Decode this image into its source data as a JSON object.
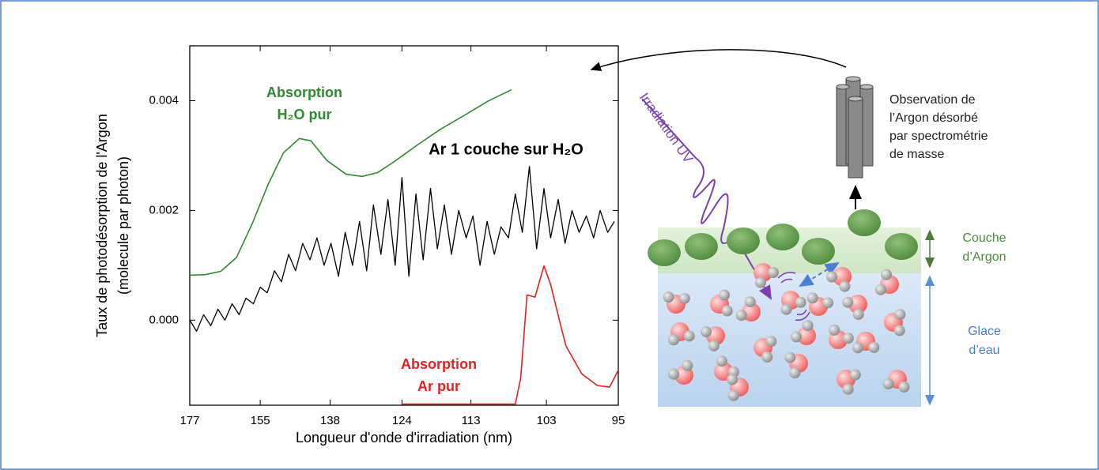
{
  "chart_data": {
    "type": "line",
    "ylabel": [
      "Taux de photodésorption de l'Argon",
      "(molecule par photon)"
    ],
    "xlabel": "Longueur d'onde d'irradiation (nm)",
    "xscale": "reciprocal",
    "xlim": [
      177,
      95
    ],
    "xticks": [
      177,
      155,
      138,
      124,
      113,
      103,
      95
    ],
    "ylim": [
      -0.00155,
      0.005
    ],
    "yticks": [
      {
        "value": 0,
        "label": "0.000"
      },
      {
        "value": 0.002,
        "label": "0.002"
      },
      {
        "value": 0.004,
        "label": "0.004"
      }
    ],
    "series": [
      {
        "label": [
          "Ar 1 couche sur H₂O"
        ],
        "color": "#000000",
        "x": [
          177.0,
          174.6,
          172.2,
          169.8,
          167.5,
          165.3,
          163.1,
          161.0,
          159.0,
          156.9,
          155.0,
          153.1,
          151.2,
          149.4,
          147.6,
          145.9,
          144.2,
          142.5,
          140.9,
          139.3,
          137.8,
          136.2,
          134.8,
          133.3,
          131.9,
          130.5,
          129.2,
          127.8,
          126.5,
          125.2,
          124.0,
          122.8,
          121.6,
          120.4,
          119.2,
          118.1,
          117.0,
          115.9,
          114.8,
          113.7,
          112.7,
          111.7,
          110.7,
          109.7,
          108.8,
          107.8,
          106.9,
          106.0,
          105.1,
          104.2,
          103.3,
          102.5,
          101.6,
          100.8,
          100.0,
          99.2,
          98.4,
          97.6,
          96.9,
          96.1,
          95.4
        ],
        "values": [
          0.0,
          -0.0002,
          0.0001,
          -0.0001,
          0.0002,
          0.0,
          0.0003,
          0.0001,
          0.0004,
          0.0003,
          0.0006,
          0.0005,
          0.0009,
          0.0007,
          0.0012,
          0.0009,
          0.0014,
          0.0011,
          0.0015,
          0.001,
          0.0014,
          0.0008,
          0.0016,
          0.001,
          0.0018,
          0.0009,
          0.0021,
          0.0012,
          0.0022,
          0.001,
          0.0026,
          0.0008,
          0.0023,
          0.0011,
          0.0024,
          0.0013,
          0.0021,
          0.0012,
          0.002,
          0.0015,
          0.0019,
          0.001,
          0.0018,
          0.0012,
          0.0017,
          0.0015,
          0.0023,
          0.0016,
          0.0028,
          0.0013,
          0.0024,
          0.0015,
          0.0022,
          0.0014,
          0.002,
          0.0016,
          0.0019,
          0.0015,
          0.002,
          0.0016,
          0.0018
        ]
      },
      {
        "label": [
          "Absorption",
          "H₂O pur"
        ],
        "color": "#2e8b2e",
        "x": [
          177,
          171.7,
          166.6,
          161.8,
          157.2,
          152.9,
          148.9,
          145.0,
          142.3,
          138.7,
          134.6,
          131.4,
          128.4,
          125.5,
          121.4,
          117.6,
          114.0,
          110.6,
          107.4
        ],
        "values": [
          0.00082,
          0.00083,
          0.00089,
          0.00114,
          0.00176,
          0.00247,
          0.00305,
          0.00331,
          0.00327,
          0.00291,
          0.00266,
          0.00262,
          0.00269,
          0.00288,
          0.00319,
          0.00348,
          0.00373,
          0.00399,
          0.0042
        ]
      },
      {
        "label": [
          "Absorption",
          "Ar pur"
        ],
        "color": "#e82020",
        "x": [
          124.1,
          112.9,
          106.9,
          106.2,
          105.4,
          104.4,
          103.3,
          102.5,
          101.4,
          100.7,
          98.9,
          97.2,
          95.9,
          95
        ],
        "values": [
          -0.00153,
          -0.00153,
          -0.00153,
          -0.00105,
          0.00046,
          0.00042,
          0.00099,
          0.00065,
          -4e-05,
          -0.00047,
          -0.00098,
          -0.00119,
          -0.00122,
          -0.00091
        ]
      }
    ]
  },
  "diagram": {
    "irradiation": "Irradiation UV",
    "observation": [
      "Observation de",
      "l’Argon désorbé",
      "par spectrométrie",
      "de masse"
    ],
    "argon_layer": [
      "Couche",
      "d’Argon"
    ],
    "ice": [
      "Glace",
      "d’eau"
    ]
  }
}
